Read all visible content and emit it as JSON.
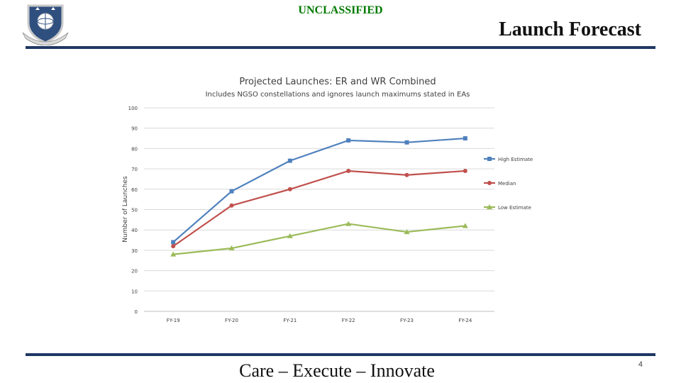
{
  "header": {
    "classification": "UNCLASSIFIED",
    "title": "Launch Forecast"
  },
  "footer": {
    "motto": "Care – Execute – Innovate",
    "page_number": "4"
  },
  "colors": {
    "rule": "#1f3864",
    "classification": "#007a00",
    "high": "#4f81bd",
    "median": "#c0504d",
    "low": "#9bbb59"
  },
  "logo": {
    "icon": "space-command-shield-icon"
  },
  "chart_data": {
    "type": "line",
    "title": "Projected Launches: ER and WR Combined",
    "subtitle": "Includes NGSO constellations and ignores launch maximums stated in EAs",
    "xlabel": "",
    "ylabel": "Number of Launches",
    "categories": [
      "FY-19",
      "FY-20",
      "FY-21",
      "FY-22",
      "FY-23",
      "FY-24"
    ],
    "ylim": [
      0,
      100
    ],
    "yticks": [
      0,
      10,
      20,
      30,
      40,
      50,
      60,
      70,
      80,
      90,
      100
    ],
    "grid": true,
    "legend_position": "right",
    "series": [
      {
        "name": "High Estimate",
        "color": "#4f81bd",
        "marker": "square",
        "values": [
          34,
          59,
          74,
          84,
          83,
          85
        ]
      },
      {
        "name": "Median",
        "color": "#c0504d",
        "marker": "circle",
        "values": [
          32,
          52,
          60,
          69,
          67,
          69
        ]
      },
      {
        "name": "Low Estimate",
        "color": "#9bbb59",
        "marker": "triangle",
        "values": [
          28,
          31,
          37,
          43,
          39,
          42
        ]
      }
    ]
  }
}
